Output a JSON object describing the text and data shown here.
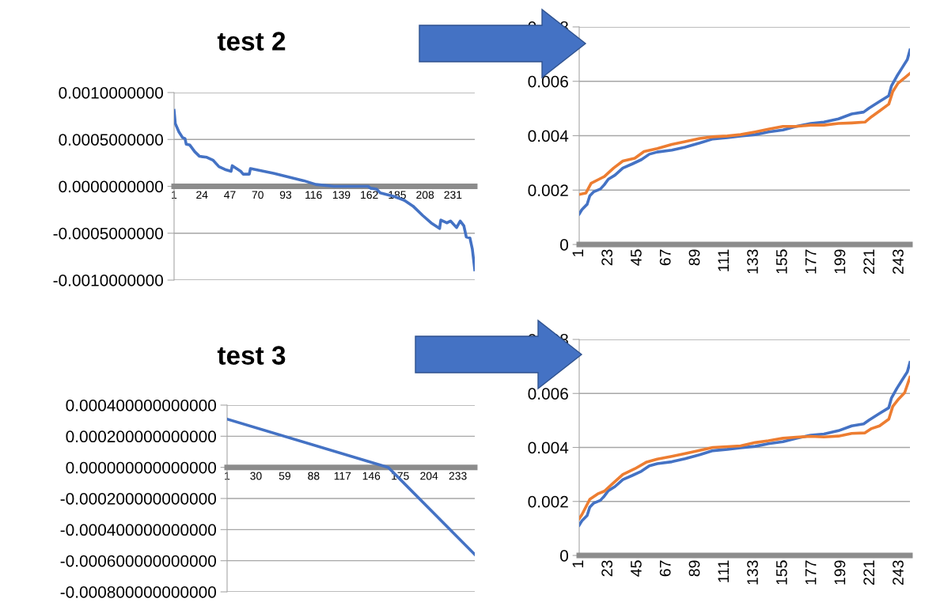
{
  "chart_data": [
    {
      "type": "line",
      "title": "test 2",
      "xlim": [
        1,
        249
      ],
      "xticks": [
        1,
        24,
        47,
        70,
        93,
        116,
        139,
        162,
        185,
        208,
        231
      ],
      "ylim": [
        -0.001,
        0.001
      ],
      "yticks": [
        {
          "value": -0.001,
          "label": "-0.0010000000"
        },
        {
          "value": -0.0005,
          "label": "-0.0005000000"
        },
        {
          "value": 0,
          "label": "0.0000000000"
        },
        {
          "value": 0.0005,
          "label": "0.0005000000"
        },
        {
          "value": 0.001,
          "label": "0.0010000000"
        }
      ],
      "grid": "y",
      "series": [
        {
          "color": "#4472c4",
          "x": [
            1,
            2,
            5,
            8,
            10,
            11,
            14,
            18,
            22,
            28,
            33,
            38,
            43,
            48,
            49,
            56,
            58,
            63,
            64,
            83,
            108,
            118,
            133,
            161,
            163,
            168,
            171,
            183,
            191,
            198,
            206,
            213,
            220,
            221,
            226,
            229,
            234,
            237,
            240,
            242,
            245,
            247,
            249
          ],
          "values": [
            0.00081,
            0.00067,
            0.00058,
            0.00052,
            0.00051,
            0.00045,
            0.00044,
            0.00037,
            0.00032,
            0.00031,
            0.00028,
            0.00021,
            0.00018,
            0.00016,
            0.00022,
            0.00016,
            0.00013,
            0.00013,
            0.00019,
            0.00014,
            6e-05,
            2e-05,
            0.0,
            0.0,
            -2e-05,
            -3e-05,
            -7e-05,
            -0.00011,
            -0.00015,
            -0.00021,
            -0.00031,
            -0.00039,
            -0.00045,
            -0.00036,
            -0.00039,
            -0.00037,
            -0.00044,
            -0.00037,
            -0.00042,
            -0.00054,
            -0.00055,
            -0.00067,
            -0.00089
          ]
        }
      ]
    },
    {
      "type": "line",
      "xlim": [
        1,
        251
      ],
      "xticks": [
        1,
        23,
        45,
        67,
        89,
        111,
        133,
        155,
        177,
        199,
        221,
        243
      ],
      "ylim": [
        0,
        0.008
      ],
      "yticks": [
        0,
        0.002,
        0.004,
        0.006,
        0.008
      ],
      "grid": "y",
      "series": [
        {
          "color": "#4472c4",
          "x": [
            1,
            3,
            7,
            9,
            12,
            17,
            20,
            23,
            28,
            34,
            41,
            48,
            54,
            60,
            71,
            81,
            92,
            102,
            113,
            123,
            134,
            144,
            155,
            165,
            176,
            186,
            197,
            207,
            216,
            220,
            228,
            235,
            237,
            241,
            245,
            249,
            251
          ],
          "values": [
            0.00112,
            0.00128,
            0.00148,
            0.00179,
            0.00194,
            0.00204,
            0.0022,
            0.0024,
            0.00255,
            0.00281,
            0.00296,
            0.00312,
            0.00332,
            0.0034,
            0.00347,
            0.00358,
            0.00373,
            0.00388,
            0.00393,
            0.00399,
            0.00404,
            0.00414,
            0.00421,
            0.00434,
            0.00445,
            0.0045,
            0.00462,
            0.0048,
            0.00487,
            0.00501,
            0.00526,
            0.00547,
            0.00583,
            0.00618,
            0.00649,
            0.0068,
            0.00715
          ]
        },
        {
          "color": "#ed7d31",
          "x": [
            1,
            6,
            10,
            16,
            20,
            27,
            34,
            43,
            50,
            60,
            71,
            81,
            92,
            102,
            113,
            123,
            134,
            144,
            155,
            165,
            176,
            186,
            197,
            207,
            217,
            222,
            228,
            235,
            238,
            242,
            247,
            251
          ],
          "values": [
            0.00184,
            0.00189,
            0.00225,
            0.0024,
            0.0025,
            0.00281,
            0.00307,
            0.00317,
            0.00342,
            0.00353,
            0.00368,
            0.00378,
            0.0039,
            0.00396,
            0.00399,
            0.00404,
            0.00414,
            0.00424,
            0.00434,
            0.00434,
            0.00439,
            0.00439,
            0.00445,
            0.00447,
            0.0045,
            0.0047,
            0.00491,
            0.00516,
            0.00562,
            0.00593,
            0.00613,
            0.00629
          ]
        }
      ]
    },
    {
      "type": "line",
      "title": "test 3",
      "xlim": [
        1,
        250
      ],
      "xticks": [
        1,
        30,
        59,
        88,
        117,
        146,
        175,
        204,
        233
      ],
      "ylim": [
        -0.0008,
        0.0004
      ],
      "yticks": [
        {
          "value": -0.0008,
          "label": "-0.000800000000000"
        },
        {
          "value": -0.0006,
          "label": "-0.000600000000000"
        },
        {
          "value": -0.0004,
          "label": "-0.000400000000000"
        },
        {
          "value": -0.0002,
          "label": "-0.000200000000000"
        },
        {
          "value": 0,
          "label": "0.000000000000000"
        },
        {
          "value": 0.0002,
          "label": "0.000200000000000"
        },
        {
          "value": 0.0004,
          "label": "0.000400000000000"
        }
      ],
      "grid": "y",
      "series": [
        {
          "color": "#4472c4",
          "x": [
            1,
            163,
            250
          ],
          "values": [
            0.00031,
            0.0,
            -0.00056
          ]
        }
      ]
    },
    {
      "type": "line",
      "xlim": [
        1,
        251
      ],
      "xticks": [
        1,
        23,
        45,
        67,
        89,
        111,
        133,
        155,
        177,
        199,
        221,
        243
      ],
      "ylim": [
        0,
        0.008
      ],
      "yticks": [
        0,
        0.002,
        0.004,
        0.006,
        0.008
      ],
      "grid": "y",
      "series": [
        {
          "color": "#4472c4",
          "x": [
            1,
            3,
            7,
            9,
            12,
            17,
            20,
            23,
            28,
            34,
            41,
            48,
            54,
            60,
            71,
            81,
            92,
            102,
            113,
            123,
            134,
            144,
            155,
            165,
            176,
            186,
            197,
            207,
            216,
            220,
            228,
            235,
            237,
            241,
            245,
            249,
            251
          ],
          "values": [
            0.00112,
            0.00128,
            0.00148,
            0.00179,
            0.00194,
            0.00204,
            0.0022,
            0.0024,
            0.00255,
            0.00281,
            0.00296,
            0.00312,
            0.00332,
            0.0034,
            0.00347,
            0.00358,
            0.00373,
            0.00388,
            0.00393,
            0.00399,
            0.00404,
            0.00414,
            0.00421,
            0.00434,
            0.00445,
            0.0045,
            0.00462,
            0.0048,
            0.00487,
            0.00501,
            0.00526,
            0.00547,
            0.00583,
            0.00618,
            0.00649,
            0.0068,
            0.00715
          ]
        },
        {
          "color": "#ed7d31",
          "x": [
            1,
            3,
            9,
            15,
            20,
            27,
            34,
            43,
            52,
            60,
            71,
            81,
            92,
            102,
            113,
            123,
            134,
            144,
            155,
            165,
            176,
            186,
            197,
            207,
            217,
            222,
            228,
            235,
            238,
            242,
            247,
            251
          ],
          "values": [
            0.00136,
            0.00151,
            0.00208,
            0.00228,
            0.00238,
            0.00269,
            0.003,
            0.00321,
            0.00346,
            0.00357,
            0.00367,
            0.00377,
            0.00389,
            0.004,
            0.00403,
            0.00406,
            0.00418,
            0.00425,
            0.00434,
            0.00438,
            0.00441,
            0.00439,
            0.00442,
            0.00452,
            0.00454,
            0.0047,
            0.0048,
            0.00505,
            0.00552,
            0.00577,
            0.00603,
            0.0066
          ]
        }
      ]
    }
  ]
}
